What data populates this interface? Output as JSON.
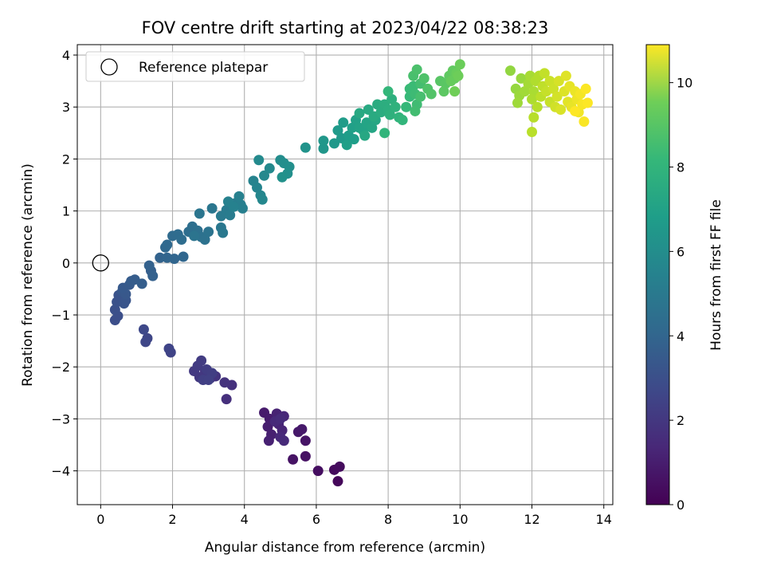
{
  "chart_data": {
    "type": "scatter",
    "title": "FOV centre drift starting at 2023/04/22 08:38:23",
    "xlabel": "Angular distance from reference (arcmin)",
    "ylabel": "Rotation from reference (arcmin)",
    "colorbar_label": "Hours from first FF file",
    "colormap": "viridis",
    "xlim": [
      -0.65,
      14.25
    ],
    "ylim": [
      -4.65,
      4.2
    ],
    "clim": [
      0,
      10.9
    ],
    "x_ticks": [
      0,
      2,
      4,
      6,
      8,
      10,
      12,
      14
    ],
    "y_ticks": [
      -4,
      -3,
      -2,
      -1,
      0,
      1,
      2,
      3,
      4
    ],
    "colorbar_ticks": [
      0,
      2,
      4,
      6,
      8,
      10
    ],
    "grid": true,
    "legend": {
      "position": "top-left",
      "entries": [
        {
          "label": "Reference platepar",
          "marker": "open-circle"
        }
      ]
    },
    "reference_point": {
      "x": 0,
      "y": 0
    },
    "points": [
      {
        "x": 6.6,
        "y": -4.2,
        "h": 0.2
      },
      {
        "x": 6.5,
        "y": -3.98,
        "h": 0.3
      },
      {
        "x": 6.65,
        "y": -3.92,
        "h": 0.35
      },
      {
        "x": 6.05,
        "y": -4.0,
        "h": 0.4
      },
      {
        "x": 5.7,
        "y": -3.72,
        "h": 0.5
      },
      {
        "x": 5.35,
        "y": -3.78,
        "h": 0.55
      },
      {
        "x": 5.7,
        "y": -3.42,
        "h": 0.6
      },
      {
        "x": 5.5,
        "y": -3.25,
        "h": 0.7
      },
      {
        "x": 5.6,
        "y": -3.2,
        "h": 0.75
      },
      {
        "x": 4.55,
        "y": -2.88,
        "h": 0.8
      },
      {
        "x": 4.7,
        "y": -3.0,
        "h": 0.85
      },
      {
        "x": 4.65,
        "y": -3.15,
        "h": 0.9
      },
      {
        "x": 4.75,
        "y": -3.3,
        "h": 0.95
      },
      {
        "x": 4.68,
        "y": -3.42,
        "h": 1.0
      },
      {
        "x": 4.9,
        "y": -2.9,
        "h": 1.05
      },
      {
        "x": 4.95,
        "y": -3.1,
        "h": 1.1
      },
      {
        "x": 5.05,
        "y": -3.22,
        "h": 1.15
      },
      {
        "x": 5.1,
        "y": -2.95,
        "h": 1.2
      },
      {
        "x": 5.0,
        "y": -3.35,
        "h": 1.25
      },
      {
        "x": 5.1,
        "y": -3.42,
        "h": 1.28
      },
      {
        "x": 4.85,
        "y": -3.05,
        "h": 1.3
      },
      {
        "x": 5.0,
        "y": -3.0,
        "h": 1.35
      },
      {
        "x": 3.5,
        "y": -2.62,
        "h": 1.5
      },
      {
        "x": 3.65,
        "y": -2.35,
        "h": 1.55
      },
      {
        "x": 3.45,
        "y": -2.3,
        "h": 1.6
      },
      {
        "x": 3.2,
        "y": -2.18,
        "h": 1.65
      },
      {
        "x": 3.05,
        "y": -2.22,
        "h": 1.7
      },
      {
        "x": 2.9,
        "y": -2.1,
        "h": 1.75
      },
      {
        "x": 2.75,
        "y": -2.2,
        "h": 1.8
      },
      {
        "x": 2.6,
        "y": -2.08,
        "h": 1.85
      },
      {
        "x": 2.7,
        "y": -1.98,
        "h": 1.9
      },
      {
        "x": 2.8,
        "y": -1.88,
        "h": 1.95
      },
      {
        "x": 2.95,
        "y": -2.05,
        "h": 2.0
      },
      {
        "x": 3.1,
        "y": -2.12,
        "h": 2.02
      },
      {
        "x": 2.85,
        "y": -2.25,
        "h": 2.05
      },
      {
        "x": 3.0,
        "y": -2.25,
        "h": 2.1
      },
      {
        "x": 1.95,
        "y": -1.72,
        "h": 2.2
      },
      {
        "x": 1.9,
        "y": -1.65,
        "h": 2.25
      },
      {
        "x": 1.3,
        "y": -1.45,
        "h": 2.3
      },
      {
        "x": 1.25,
        "y": -1.52,
        "h": 2.35
      },
      {
        "x": 1.2,
        "y": -1.28,
        "h": 2.4
      },
      {
        "x": 0.4,
        "y": -1.1,
        "h": 2.6
      },
      {
        "x": 0.48,
        "y": -1.02,
        "h": 2.65
      },
      {
        "x": 0.4,
        "y": -0.9,
        "h": 2.7
      },
      {
        "x": 0.45,
        "y": -0.75,
        "h": 2.75
      },
      {
        "x": 0.5,
        "y": -0.62,
        "h": 2.8
      },
      {
        "x": 0.65,
        "y": -0.78,
        "h": 2.85
      },
      {
        "x": 0.7,
        "y": -0.72,
        "h": 2.9
      },
      {
        "x": 0.6,
        "y": -0.55,
        "h": 2.95
      },
      {
        "x": 0.7,
        "y": -0.6,
        "h": 3.0
      },
      {
        "x": 0.62,
        "y": -0.48,
        "h": 3.05
      },
      {
        "x": 0.8,
        "y": -0.42,
        "h": 3.1
      },
      {
        "x": 0.85,
        "y": -0.35,
        "h": 3.15
      },
      {
        "x": 0.95,
        "y": -0.32,
        "h": 3.2
      },
      {
        "x": 1.15,
        "y": -0.4,
        "h": 3.25
      },
      {
        "x": 1.4,
        "y": -0.15,
        "h": 3.3
      },
      {
        "x": 1.45,
        "y": -0.25,
        "h": 3.35
      },
      {
        "x": 1.35,
        "y": -0.05,
        "h": 3.4
      },
      {
        "x": 1.65,
        "y": 0.1,
        "h": 3.45
      },
      {
        "x": 1.85,
        "y": 0.1,
        "h": 3.5
      },
      {
        "x": 2.05,
        "y": 0.08,
        "h": 3.55
      },
      {
        "x": 2.3,
        "y": 0.12,
        "h": 3.6
      },
      {
        "x": 1.8,
        "y": 0.3,
        "h": 3.65
      },
      {
        "x": 1.85,
        "y": 0.35,
        "h": 3.7
      },
      {
        "x": 2.0,
        "y": 0.52,
        "h": 3.75
      },
      {
        "x": 2.15,
        "y": 0.55,
        "h": 3.8
      },
      {
        "x": 2.25,
        "y": 0.45,
        "h": 3.85
      },
      {
        "x": 2.45,
        "y": 0.6,
        "h": 3.9
      },
      {
        "x": 2.55,
        "y": 0.7,
        "h": 3.95
      },
      {
        "x": 2.7,
        "y": 0.62,
        "h": 4.0
      },
      {
        "x": 2.8,
        "y": 0.5,
        "h": 4.05
      },
      {
        "x": 2.9,
        "y": 0.45,
        "h": 4.1
      },
      {
        "x": 3.0,
        "y": 0.6,
        "h": 4.15
      },
      {
        "x": 2.6,
        "y": 0.52,
        "h": 4.2
      },
      {
        "x": 2.75,
        "y": 0.95,
        "h": 4.25
      },
      {
        "x": 3.1,
        "y": 1.05,
        "h": 4.3
      },
      {
        "x": 3.35,
        "y": 0.68,
        "h": 4.35
      },
      {
        "x": 3.4,
        "y": 0.58,
        "h": 4.4
      },
      {
        "x": 3.35,
        "y": 0.9,
        "h": 4.45
      },
      {
        "x": 3.5,
        "y": 1.02,
        "h": 4.5
      },
      {
        "x": 3.6,
        "y": 0.92,
        "h": 4.55
      },
      {
        "x": 3.75,
        "y": 1.15,
        "h": 4.6
      },
      {
        "x": 3.9,
        "y": 1.12,
        "h": 4.65
      },
      {
        "x": 3.95,
        "y": 1.05,
        "h": 4.7
      },
      {
        "x": 3.85,
        "y": 1.28,
        "h": 4.75
      },
      {
        "x": 3.55,
        "y": 1.18,
        "h": 4.78
      },
      {
        "x": 3.7,
        "y": 1.08,
        "h": 4.8
      },
      {
        "x": 4.25,
        "y": 1.58,
        "h": 4.9
      },
      {
        "x": 4.35,
        "y": 1.45,
        "h": 4.95
      },
      {
        "x": 4.45,
        "y": 1.3,
        "h": 5.0
      },
      {
        "x": 4.5,
        "y": 1.22,
        "h": 5.05
      },
      {
        "x": 4.55,
        "y": 1.68,
        "h": 5.1
      },
      {
        "x": 4.7,
        "y": 1.82,
        "h": 5.15
      },
      {
        "x": 4.4,
        "y": 1.98,
        "h": 5.2
      },
      {
        "x": 5.0,
        "y": 1.98,
        "h": 5.3
      },
      {
        "x": 5.1,
        "y": 1.92,
        "h": 5.35
      },
      {
        "x": 5.25,
        "y": 1.85,
        "h": 5.4
      },
      {
        "x": 5.2,
        "y": 1.72,
        "h": 5.45
      },
      {
        "x": 5.05,
        "y": 1.65,
        "h": 5.5
      },
      {
        "x": 5.7,
        "y": 2.22,
        "h": 5.6
      },
      {
        "x": 6.2,
        "y": 2.2,
        "h": 5.7
      },
      {
        "x": 6.2,
        "y": 2.35,
        "h": 5.75
      },
      {
        "x": 6.5,
        "y": 2.3,
        "h": 5.8
      },
      {
        "x": 6.7,
        "y": 2.4,
        "h": 5.85
      },
      {
        "x": 6.6,
        "y": 2.55,
        "h": 5.9
      },
      {
        "x": 6.75,
        "y": 2.7,
        "h": 5.95
      },
      {
        "x": 6.9,
        "y": 2.45,
        "h": 6.0
      },
      {
        "x": 7.05,
        "y": 2.38,
        "h": 6.05
      },
      {
        "x": 6.85,
        "y": 2.27,
        "h": 6.1
      },
      {
        "x": 7.0,
        "y": 2.6,
        "h": 6.15
      },
      {
        "x": 7.1,
        "y": 2.75,
        "h": 6.2
      },
      {
        "x": 7.2,
        "y": 2.6,
        "h": 6.25
      },
      {
        "x": 7.3,
        "y": 2.55,
        "h": 6.3
      },
      {
        "x": 7.4,
        "y": 2.7,
        "h": 6.35
      },
      {
        "x": 7.55,
        "y": 2.6,
        "h": 6.4
      },
      {
        "x": 7.65,
        "y": 2.75,
        "h": 6.45
      },
      {
        "x": 7.35,
        "y": 2.45,
        "h": 6.5
      },
      {
        "x": 7.2,
        "y": 2.88,
        "h": 6.55
      },
      {
        "x": 7.45,
        "y": 2.95,
        "h": 6.6
      },
      {
        "x": 7.6,
        "y": 2.82,
        "h": 6.65
      },
      {
        "x": 7.7,
        "y": 3.05,
        "h": 6.7
      },
      {
        "x": 7.8,
        "y": 2.9,
        "h": 6.75
      },
      {
        "x": 7.9,
        "y": 3.05,
        "h": 6.8
      },
      {
        "x": 8.0,
        "y": 2.95,
        "h": 6.85
      },
      {
        "x": 8.1,
        "y": 3.15,
        "h": 6.9
      },
      {
        "x": 8.05,
        "y": 2.85,
        "h": 6.95
      },
      {
        "x": 8.2,
        "y": 3.0,
        "h": 7.0
      },
      {
        "x": 8.3,
        "y": 2.8,
        "h": 7.05
      },
      {
        "x": 7.9,
        "y": 2.5,
        "h": 7.1
      },
      {
        "x": 8.4,
        "y": 2.75,
        "h": 7.15
      },
      {
        "x": 8.0,
        "y": 3.3,
        "h": 7.2
      },
      {
        "x": 8.5,
        "y": 3.0,
        "h": 7.25
      },
      {
        "x": 8.6,
        "y": 3.2,
        "h": 7.3
      },
      {
        "x": 8.6,
        "y": 3.35,
        "h": 7.35
      },
      {
        "x": 8.7,
        "y": 3.4,
        "h": 7.4
      },
      {
        "x": 8.75,
        "y": 3.25,
        "h": 7.45
      },
      {
        "x": 8.8,
        "y": 3.05,
        "h": 7.5
      },
      {
        "x": 8.75,
        "y": 2.92,
        "h": 7.55
      },
      {
        "x": 8.9,
        "y": 3.45,
        "h": 7.6
      },
      {
        "x": 8.9,
        "y": 3.2,
        "h": 7.65
      },
      {
        "x": 8.7,
        "y": 3.6,
        "h": 7.7
      },
      {
        "x": 8.8,
        "y": 3.72,
        "h": 7.75
      },
      {
        "x": 9.0,
        "y": 3.55,
        "h": 7.8
      },
      {
        "x": 9.1,
        "y": 3.35,
        "h": 7.85
      },
      {
        "x": 9.2,
        "y": 3.25,
        "h": 7.9
      },
      {
        "x": 9.45,
        "y": 3.5,
        "h": 8.0
      },
      {
        "x": 9.6,
        "y": 3.45,
        "h": 8.05
      },
      {
        "x": 9.55,
        "y": 3.3,
        "h": 8.1
      },
      {
        "x": 9.7,
        "y": 3.6,
        "h": 8.15
      },
      {
        "x": 9.8,
        "y": 3.7,
        "h": 8.2
      },
      {
        "x": 9.85,
        "y": 3.55,
        "h": 8.25
      },
      {
        "x": 9.75,
        "y": 3.5,
        "h": 8.3
      },
      {
        "x": 9.9,
        "y": 3.65,
        "h": 8.35
      },
      {
        "x": 10.0,
        "y": 3.82,
        "h": 8.4
      },
      {
        "x": 9.95,
        "y": 3.6,
        "h": 8.45
      },
      {
        "x": 9.85,
        "y": 3.3,
        "h": 8.5
      },
      {
        "x": 11.4,
        "y": 3.7,
        "h": 9.1
      },
      {
        "x": 11.55,
        "y": 3.35,
        "h": 9.15
      },
      {
        "x": 11.7,
        "y": 3.55,
        "h": 9.2
      },
      {
        "x": 11.65,
        "y": 3.22,
        "h": 9.25
      },
      {
        "x": 11.6,
        "y": 3.08,
        "h": 9.3
      },
      {
        "x": 11.8,
        "y": 3.3,
        "h": 9.35
      },
      {
        "x": 11.9,
        "y": 3.45,
        "h": 9.4
      },
      {
        "x": 11.95,
        "y": 3.6,
        "h": 9.45
      },
      {
        "x": 12.05,
        "y": 3.3,
        "h": 9.5
      },
      {
        "x": 12.0,
        "y": 3.15,
        "h": 9.55
      },
      {
        "x": 12.1,
        "y": 3.5,
        "h": 9.6
      },
      {
        "x": 12.2,
        "y": 3.6,
        "h": 9.65
      },
      {
        "x": 12.15,
        "y": 3.0,
        "h": 9.7
      },
      {
        "x": 12.05,
        "y": 2.8,
        "h": 9.73
      },
      {
        "x": 12.0,
        "y": 2.52,
        "h": 9.76
      },
      {
        "x": 12.25,
        "y": 3.2,
        "h": 9.8
      },
      {
        "x": 12.3,
        "y": 3.4,
        "h": 9.85
      },
      {
        "x": 12.35,
        "y": 3.65,
        "h": 9.9
      },
      {
        "x": 12.4,
        "y": 3.3,
        "h": 9.95
      },
      {
        "x": 12.5,
        "y": 3.1,
        "h": 10.0
      },
      {
        "x": 12.5,
        "y": 3.5,
        "h": 10.05
      },
      {
        "x": 12.6,
        "y": 3.35,
        "h": 10.1
      },
      {
        "x": 12.65,
        "y": 3.0,
        "h": 10.15
      },
      {
        "x": 12.7,
        "y": 3.2,
        "h": 10.2
      },
      {
        "x": 12.75,
        "y": 3.5,
        "h": 10.25
      },
      {
        "x": 12.8,
        "y": 2.95,
        "h": 10.3
      },
      {
        "x": 12.9,
        "y": 3.3,
        "h": 10.35
      },
      {
        "x": 12.95,
        "y": 3.6,
        "h": 10.4
      },
      {
        "x": 13.0,
        "y": 3.1,
        "h": 10.45
      },
      {
        "x": 13.05,
        "y": 3.4,
        "h": 10.5
      },
      {
        "x": 13.1,
        "y": 3.0,
        "h": 10.55
      },
      {
        "x": 13.2,
        "y": 3.3,
        "h": 10.6
      },
      {
        "x": 13.25,
        "y": 3.15,
        "h": 10.65
      },
      {
        "x": 13.3,
        "y": 2.9,
        "h": 10.7
      },
      {
        "x": 13.35,
        "y": 3.25,
        "h": 10.75
      },
      {
        "x": 13.4,
        "y": 3.05,
        "h": 10.8
      },
      {
        "x": 13.45,
        "y": 2.72,
        "h": 10.83
      },
      {
        "x": 13.5,
        "y": 3.35,
        "h": 10.86
      },
      {
        "x": 13.55,
        "y": 3.08,
        "h": 10.88
      },
      {
        "x": 13.2,
        "y": 2.92,
        "h": 10.9
      }
    ]
  }
}
